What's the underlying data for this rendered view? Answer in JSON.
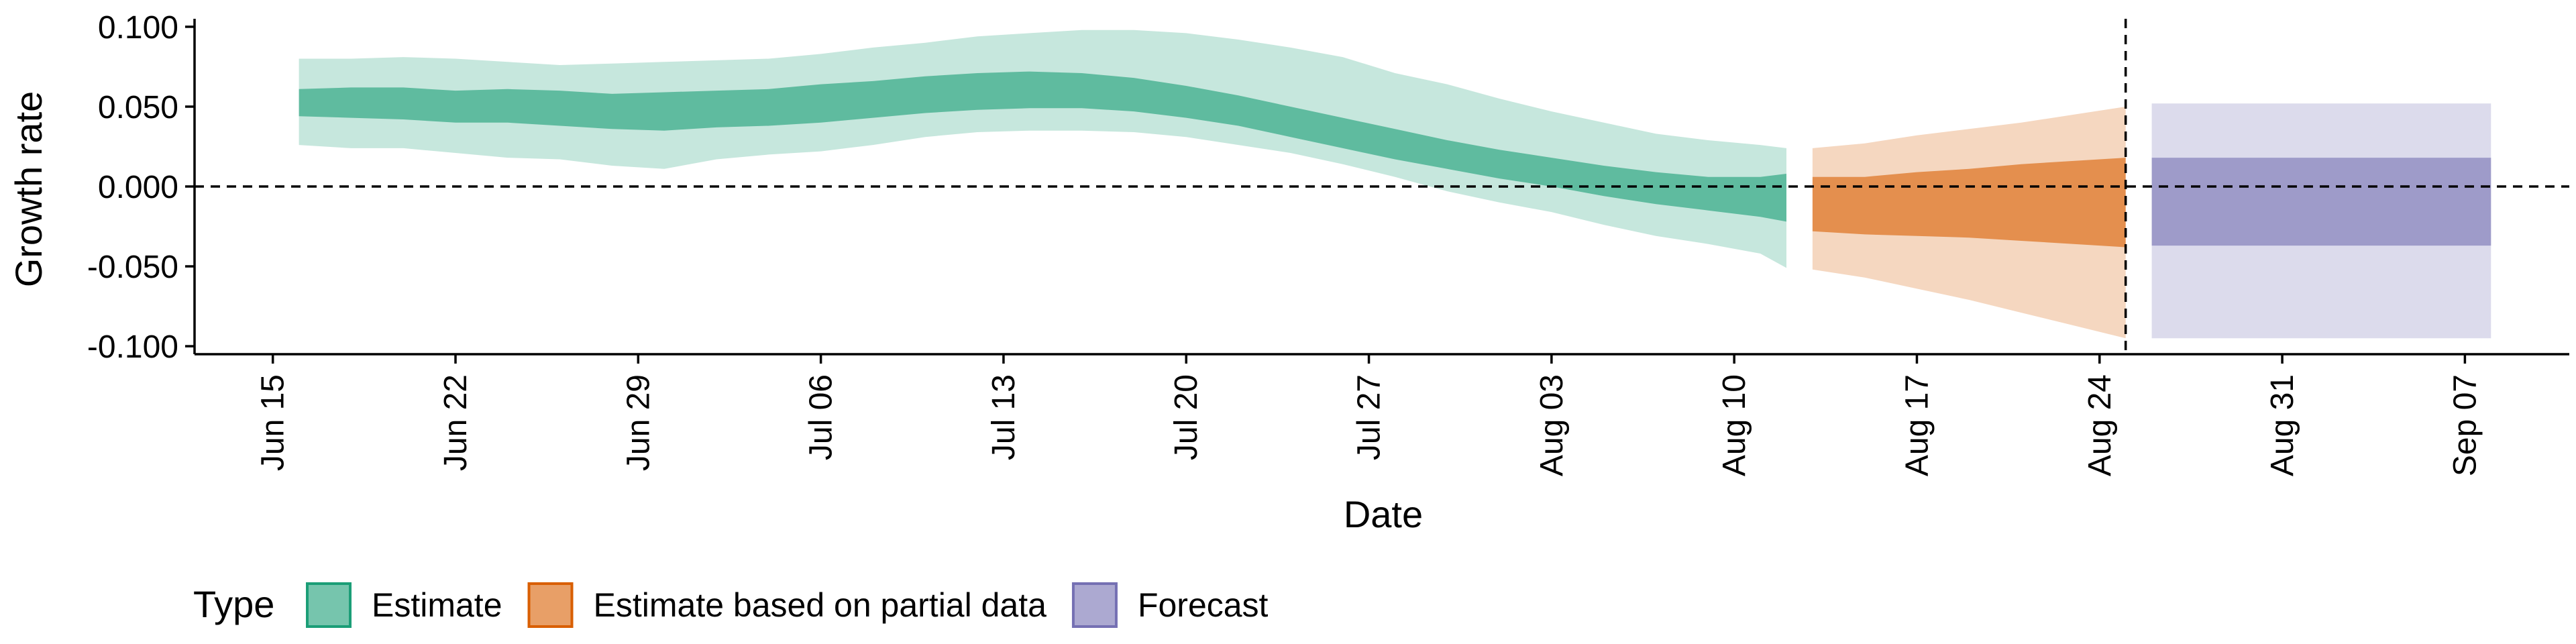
{
  "chart_data": {
    "type": "area",
    "xlabel": "Date",
    "ylabel": "Growth rate",
    "ylim": [
      -0.1,
      0.1
    ],
    "xlim": [
      "2021-06-12",
      "2021-09-11"
    ],
    "y_ticks": [
      {
        "value": 0.1,
        "label": "0.100"
      },
      {
        "value": 0.05,
        "label": "0.050"
      },
      {
        "value": 0.0,
        "label": "0.000"
      },
      {
        "value": -0.05,
        "label": "-0.050"
      },
      {
        "value": -0.1,
        "label": "-0.100"
      }
    ],
    "x_ticks": [
      {
        "date": "2021-06-15",
        "label": "Jun 15"
      },
      {
        "date": "2021-06-22",
        "label": "Jun 22"
      },
      {
        "date": "2021-06-29",
        "label": "Jun 29"
      },
      {
        "date": "2021-07-06",
        "label": "Jul 06"
      },
      {
        "date": "2021-07-13",
        "label": "Jul 13"
      },
      {
        "date": "2021-07-20",
        "label": "Jul 20"
      },
      {
        "date": "2021-07-27",
        "label": "Jul 27"
      },
      {
        "date": "2021-08-03",
        "label": "Aug 03"
      },
      {
        "date": "2021-08-10",
        "label": "Aug 10"
      },
      {
        "date": "2021-08-17",
        "label": "Aug 17"
      },
      {
        "date": "2021-08-24",
        "label": "Aug 24"
      },
      {
        "date": "2021-08-31",
        "label": "Aug 31"
      },
      {
        "date": "2021-09-07",
        "label": "Sep 07"
      }
    ],
    "reference_lines": [
      {
        "axis": "y",
        "value": 0.0,
        "style": "dashed"
      },
      {
        "axis": "x",
        "date": "2021-08-25",
        "style": "dashed"
      }
    ],
    "legend": {
      "title": "Type",
      "position": "bottom",
      "items": [
        {
          "label": "Estimate",
          "color": "#1b9e77"
        },
        {
          "label": "Estimate based on partial data",
          "color": "#d95f02"
        },
        {
          "label": "Forecast",
          "color": "#7570b3"
        }
      ]
    },
    "series": [
      {
        "name": "Estimate",
        "color": "#1b9e77",
        "x": [
          "2021-06-16",
          "2021-06-18",
          "2021-06-20",
          "2021-06-22",
          "2021-06-24",
          "2021-06-26",
          "2021-06-28",
          "2021-06-30",
          "2021-07-02",
          "2021-07-04",
          "2021-07-06",
          "2021-07-08",
          "2021-07-10",
          "2021-07-12",
          "2021-07-14",
          "2021-07-16",
          "2021-07-18",
          "2021-07-20",
          "2021-07-22",
          "2021-07-24",
          "2021-07-26",
          "2021-07-28",
          "2021-07-30",
          "2021-08-01",
          "2021-08-03",
          "2021-08-05",
          "2021-08-07",
          "2021-08-09",
          "2021-08-11",
          "2021-08-12"
        ],
        "lower_90": [
          0.026,
          0.024,
          0.024,
          0.021,
          0.018,
          0.017,
          0.013,
          0.011,
          0.017,
          0.02,
          0.022,
          0.026,
          0.031,
          0.034,
          0.035,
          0.035,
          0.034,
          0.031,
          0.026,
          0.021,
          0.014,
          0.006,
          -0.003,
          -0.01,
          -0.016,
          -0.024,
          -0.031,
          -0.036,
          -0.042,
          -0.051
        ],
        "upper_90": [
          0.08,
          0.08,
          0.081,
          0.08,
          0.078,
          0.076,
          0.077,
          0.078,
          0.079,
          0.08,
          0.083,
          0.087,
          0.09,
          0.094,
          0.096,
          0.098,
          0.098,
          0.096,
          0.092,
          0.087,
          0.081,
          0.071,
          0.064,
          0.055,
          0.047,
          0.04,
          0.033,
          0.029,
          0.026,
          0.024
        ],
        "lower_50": [
          0.044,
          0.043,
          0.042,
          0.04,
          0.04,
          0.038,
          0.036,
          0.035,
          0.037,
          0.038,
          0.04,
          0.043,
          0.046,
          0.048,
          0.049,
          0.049,
          0.047,
          0.043,
          0.038,
          0.031,
          0.024,
          0.017,
          0.011,
          0.005,
          0.0,
          -0.006,
          -0.011,
          -0.015,
          -0.019,
          -0.022
        ],
        "upper_50": [
          0.061,
          0.062,
          0.062,
          0.06,
          0.061,
          0.06,
          0.058,
          0.059,
          0.06,
          0.061,
          0.064,
          0.066,
          0.069,
          0.071,
          0.072,
          0.071,
          0.068,
          0.063,
          0.057,
          0.05,
          0.043,
          0.036,
          0.029,
          0.023,
          0.018,
          0.013,
          0.009,
          0.006,
          0.006,
          0.008
        ]
      },
      {
        "name": "Estimate based on partial data",
        "color": "#d95f02",
        "x": [
          "2021-08-13",
          "2021-08-15",
          "2021-08-17",
          "2021-08-19",
          "2021-08-21",
          "2021-08-23",
          "2021-08-25"
        ],
        "lower_90": [
          -0.052,
          -0.057,
          -0.064,
          -0.071,
          -0.079,
          -0.087,
          -0.095
        ],
        "upper_90": [
          0.024,
          0.027,
          0.032,
          0.036,
          0.04,
          0.045,
          0.05
        ],
        "lower_50": [
          -0.028,
          -0.03,
          -0.031,
          -0.032,
          -0.034,
          -0.036,
          -0.038
        ],
        "upper_50": [
          0.006,
          0.006,
          0.009,
          0.011,
          0.014,
          0.016,
          0.018
        ]
      },
      {
        "name": "Forecast",
        "color": "#7570b3",
        "x": [
          "2021-08-26",
          "2021-09-08"
        ],
        "lower_90": [
          -0.095,
          -0.095
        ],
        "upper_90": [
          0.052,
          0.052
        ],
        "lower_50": [
          -0.037,
          -0.037
        ],
        "upper_50": [
          0.018,
          0.018
        ]
      }
    ]
  }
}
